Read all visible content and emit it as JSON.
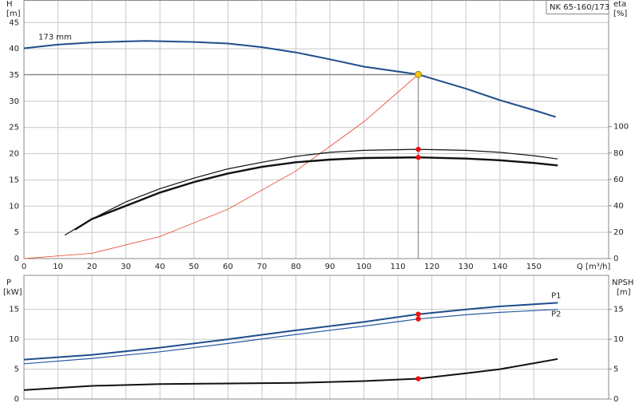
{
  "chart_data": [
    {
      "type": "line",
      "title": "NK 65-160/173",
      "ylabel": "H",
      "yunit": "[m]",
      "y2label": "eta",
      "y2unit": "[%]",
      "xlabel": "Q [m³/h]",
      "xlim": [
        0,
        172
      ],
      "xticks": [
        0,
        10,
        20,
        30,
        40,
        50,
        60,
        70,
        80,
        90,
        100,
        110,
        120,
        130,
        140,
        150
      ],
      "ylim": [
        0,
        49.3
      ],
      "yticks": [
        0,
        5,
        10,
        15,
        20,
        25,
        30,
        35,
        40,
        45
      ],
      "y2lim": [
        0,
        196
      ],
      "y2ticks": [
        0,
        20,
        40,
        60,
        80,
        100
      ],
      "grid": true,
      "series": [
        {
          "name": "173 mm",
          "color": "#1f4e8c",
          "line_width": 2,
          "x": [
            0,
            10,
            20,
            30,
            36,
            50,
            60,
            70,
            80,
            90,
            100,
            116,
            130,
            140,
            150,
            156.4
          ],
          "values": [
            40.1,
            40.8,
            41.2,
            41.4,
            41.5,
            41.3,
            41,
            40.3,
            39.3,
            38,
            36.6,
            35.1,
            32.4,
            30.2,
            28.3,
            27
          ]
        },
        {
          "color": "#e8402a",
          "line_width": 0.8,
          "x": [
            0,
            20,
            40,
            60,
            80,
            100,
            116
          ],
          "values": [
            0,
            1,
            4.2,
            9.4,
            16.7,
            26.1,
            35.1
          ]
        },
        {
          "color": "#111111",
          "line_width": 1.2,
          "axis": "y2",
          "x": [
            12,
            20,
            30,
            40,
            50,
            60,
            70,
            80,
            90,
            100,
            116,
            130,
            140,
            150,
            157
          ],
          "values": [
            17.8,
            30,
            43,
            53,
            61,
            68,
            73,
            77.5,
            80.5,
            82,
            82.8,
            82,
            80.5,
            78,
            75.5
          ]
        },
        {
          "color": "#111111",
          "line_width": 2.4,
          "axis": "y2",
          "x": [
            15,
            20,
            30,
            40,
            50,
            60,
            70,
            80,
            90,
            100,
            116,
            130,
            140,
            150,
            157
          ],
          "values": [
            22,
            30,
            40,
            50,
            58,
            64.5,
            69.5,
            73,
            75,
            76.2,
            76.7,
            75.8,
            74.5,
            72.5,
            70.6
          ]
        }
      ],
      "markers": [
        {
          "x": 116,
          "y": 35.1,
          "color": "#f5c518"
        },
        {
          "x": 116,
          "y": 82.8,
          "color": "#e81010",
          "axis": "y2"
        },
        {
          "x": 116,
          "y": 76.7,
          "color": "#e81010",
          "axis": "y2"
        }
      ]
    },
    {
      "type": "line",
      "ylabel": "P",
      "yunit": "[kW]",
      "y2label": "NPSH",
      "y2unit": "[m]",
      "xlim": [
        0,
        172
      ],
      "ylim": [
        0,
        20.7
      ],
      "yticks": [
        0,
        5,
        10,
        15
      ],
      "y2lim": [
        0,
        20.7
      ],
      "y2ticks": [
        0,
        5,
        10,
        15
      ],
      "grid": true,
      "series": [
        {
          "name": "P1",
          "color": "#1f4e8c",
          "line_width": 2,
          "x": [
            0,
            20,
            40,
            60,
            80,
            100,
            116,
            130,
            140,
            157
          ],
          "values": [
            6.6,
            7.4,
            8.6,
            10,
            11.5,
            12.9,
            14.2,
            15,
            15.5,
            16.1
          ]
        },
        {
          "name": "P2",
          "color": "#2a5aa0",
          "line_width": 1.2,
          "x": [
            0,
            20,
            40,
            60,
            80,
            100,
            116,
            130,
            140,
            157
          ],
          "values": [
            5.9,
            6.8,
            7.9,
            9.3,
            10.8,
            12.2,
            13.4,
            14.1,
            14.5,
            15
          ]
        },
        {
          "color": "#111111",
          "line_width": 2,
          "axis": "y2",
          "x": [
            0,
            20,
            40,
            60,
            80,
            100,
            116,
            130,
            140,
            150,
            157
          ],
          "values": [
            1.5,
            2.2,
            2.5,
            2.6,
            2.7,
            3,
            3.4,
            4.3,
            5,
            6,
            6.7
          ]
        }
      ],
      "markers": [
        {
          "x": 116,
          "y": 14.2,
          "color": "#e81010"
        },
        {
          "x": 116,
          "y": 13.4,
          "color": "#e81010"
        },
        {
          "x": 116,
          "y": 3.4,
          "color": "#e81010",
          "axis": "y2"
        }
      ]
    }
  ]
}
